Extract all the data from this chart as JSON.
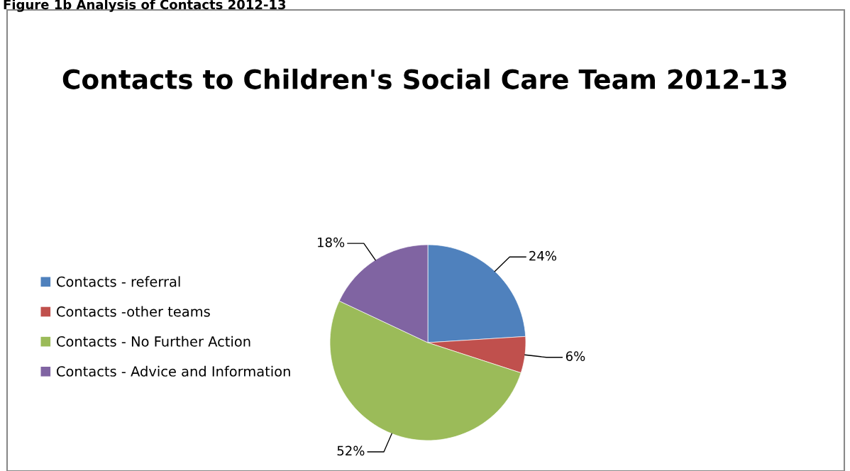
{
  "chart_data": {
    "type": "pie",
    "title": "Contacts to Children's Social Care Team 2012-13",
    "annotations": [
      "Figure 1b Analysis of Contacts 2012-13"
    ],
    "categories": [
      "Contacts - referral",
      "Contacts -other teams",
      "Contacts - No Further Action",
      "Contacts - Advice and Information"
    ],
    "values": [
      24,
      6,
      52,
      18
    ],
    "colors": [
      "#4f81bd",
      "#c0504d",
      "#9bbb59",
      "#8064a2"
    ],
    "value_labels": [
      "24%",
      "6%",
      "52%",
      "18%"
    ],
    "legend": "left"
  }
}
